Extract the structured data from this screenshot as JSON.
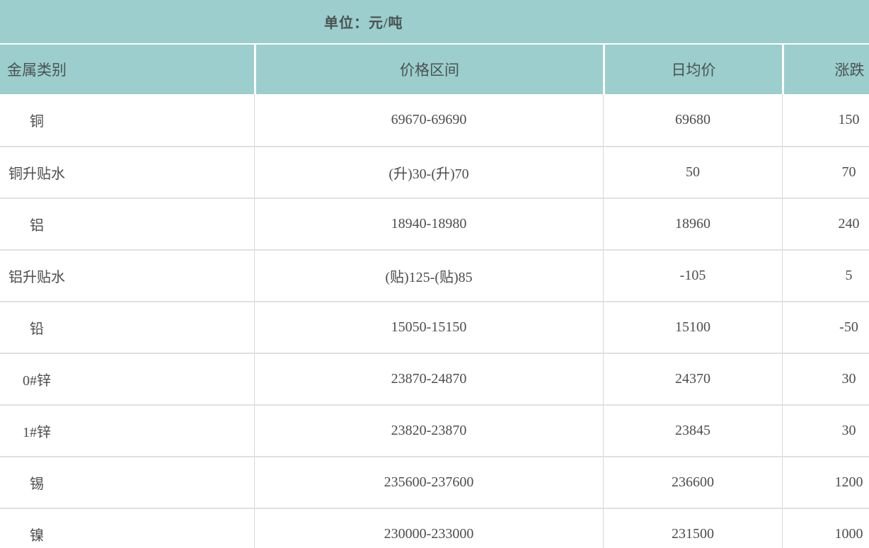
{
  "unit_bar": {
    "label": "单位：元/吨"
  },
  "chart_data": {
    "type": "table",
    "title": "单位：元/吨",
    "columns": [
      "金属类别",
      "价格区间",
      "日均价",
      "涨跌"
    ],
    "rows": [
      {
        "metal": "铜",
        "price_range": "69670-69690",
        "daily_avg": "69680",
        "change": "150"
      },
      {
        "metal": "铜升贴水",
        "price_range": "(升)30-(升)70",
        "daily_avg": "50",
        "change": "70"
      },
      {
        "metal": "铝",
        "price_range": "18940-18980",
        "daily_avg": "18960",
        "change": "240"
      },
      {
        "metal": "铝升贴水",
        "price_range": "(贴)125-(贴)85",
        "daily_avg": "-105",
        "change": "5"
      },
      {
        "metal": "铅",
        "price_range": "15050-15150",
        "daily_avg": "15100",
        "change": "-50"
      },
      {
        "metal": "0#锌",
        "price_range": "23870-24870",
        "daily_avg": "24370",
        "change": "30"
      },
      {
        "metal": "1#锌",
        "price_range": "23820-23870",
        "daily_avg": "23845",
        "change": "30"
      },
      {
        "metal": "锡",
        "price_range": "235600-237600",
        "daily_avg": "236600",
        "change": "1200"
      },
      {
        "metal": "镍",
        "price_range": "230000-233000",
        "daily_avg": "231500",
        "change": "1000"
      }
    ],
    "layout": {
      "unit_note_position": "top-bar",
      "clipped_right": true,
      "clipped_bottom": true
    }
  },
  "colors": {
    "teal_bg": "#9bcecc",
    "header_text": "#4a5252",
    "data_text": "#4d4d4d",
    "row_line": "#e0e0e0",
    "col_line": "#d8d8d8",
    "gap_white": "#ffffff"
  }
}
